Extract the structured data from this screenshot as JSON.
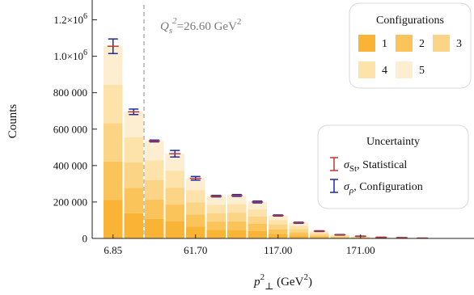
{
  "chart_data": {
    "type": "bar",
    "stacked": true,
    "ylabel": "Counts",
    "xlabel_base": "p",
    "xlabel_sup": "2",
    "xlabel_sub": "⊥",
    "xlabel_unit_prefix": "(GeV",
    "xlabel_unit_sup": "2",
    "xlabel_unit_suffix": ")",
    "annotation": {
      "prefix": "Q",
      "sub": "s",
      "sup": "2",
      "text": "=26.60 GeV",
      "unit_sup": "2",
      "cutoff_bin": 2
    },
    "x_ticks": [
      "6.85",
      "61.70",
      "117.00",
      "171.00"
    ],
    "x_tick_bins": [
      0,
      4,
      8,
      12
    ],
    "y_ticks": [
      {
        "value": 0,
        "label": "0"
      },
      {
        "value": 200000,
        "label": "200 000"
      },
      {
        "value": 400000,
        "label": "400 000"
      },
      {
        "value": 600000,
        "label": "600 000"
      },
      {
        "value": 800000,
        "label": "800 000"
      },
      {
        "value": 1000000,
        "label": "1.0×10",
        "exp": "6"
      },
      {
        "value": 1200000,
        "label": "1.2×10",
        "exp": "6"
      }
    ],
    "ylim": [
      0,
      1300000
    ],
    "totals": [
      1055000,
      695000,
      535000,
      465000,
      330000,
      232000,
      236000,
      200000,
      126000,
      86000,
      40000,
      20000,
      12000,
      6000,
      4000,
      1500
    ],
    "config_uncertainty": [
      40000,
      15000,
      5000,
      18000,
      10000,
      4000,
      5000,
      5000,
      3000,
      3000,
      2000,
      1500,
      1000,
      600,
      400,
      200
    ],
    "series": [
      {
        "name": "1",
        "color": "#f9b335"
      },
      {
        "name": "2",
        "color": "#fbc45a"
      },
      {
        "name": "3",
        "color": "#fcd486"
      },
      {
        "name": "4",
        "color": "#fde2aa"
      },
      {
        "name": "5",
        "color": "#fdeed2"
      }
    ],
    "config_legend": {
      "title": "Configurations",
      "items": [
        "1",
        "2",
        "3",
        "4",
        "5"
      ]
    },
    "uncertainty_legend": {
      "title": "Uncertainty",
      "items": [
        {
          "symbol": "σ",
          "sub": "St",
          "label": ", Statistical",
          "color": "#c0392b"
        },
        {
          "symbol": "σ",
          "sub": "ρ",
          "label": ", Configuration",
          "color": "#1a2aa8"
        }
      ]
    }
  }
}
